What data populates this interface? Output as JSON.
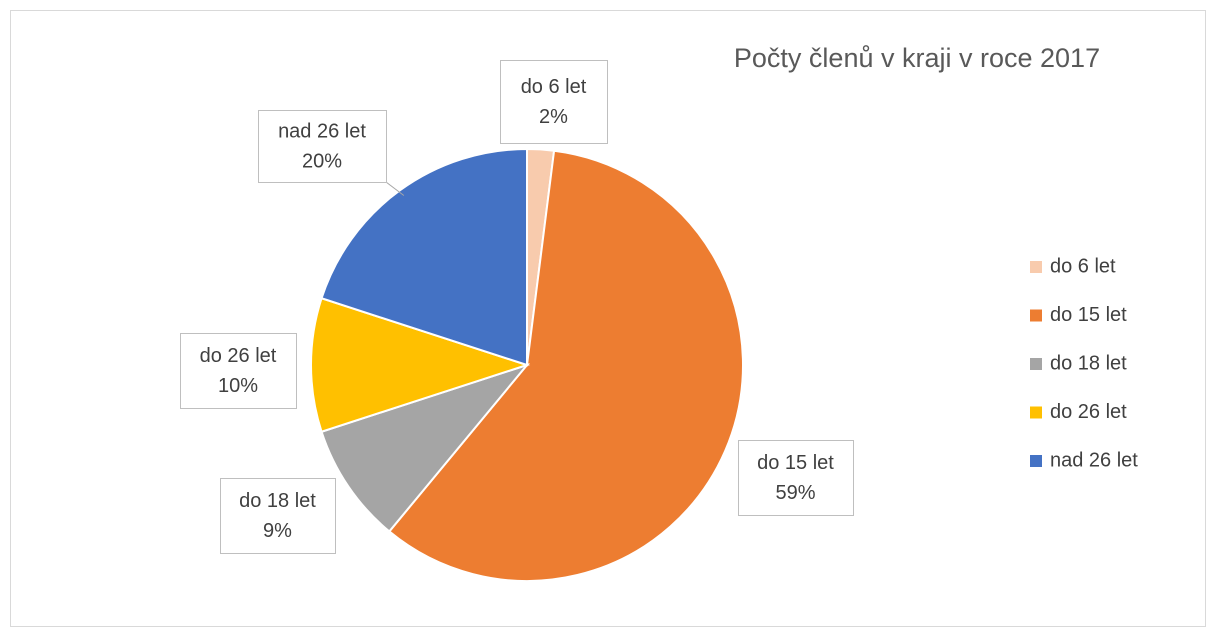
{
  "chart_data": {
    "type": "pie",
    "title": "Počty členů v kraji v roce 2017",
    "categories": [
      "do 6 let",
      "do 15 let",
      "do 18 let",
      "do 26 let",
      "nad 26 let"
    ],
    "values": [
      2,
      59,
      9,
      10,
      20
    ],
    "value_labels": [
      "2%",
      "59%",
      "9%",
      "10%",
      "20%"
    ],
    "colors": [
      "#f8cbad",
      "#ed7d31",
      "#a5a5a5",
      "#ffc000",
      "#4472c4"
    ],
    "legend": "right"
  }
}
